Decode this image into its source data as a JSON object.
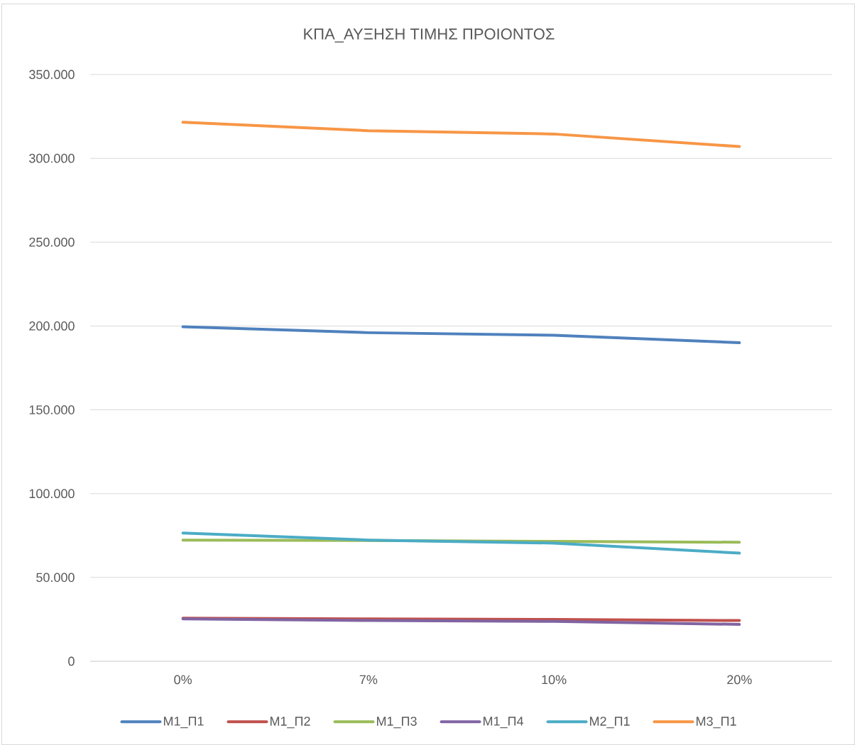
{
  "chart_data": {
    "type": "line",
    "title": "ΚΠΑ_ΑΥΞΗΣΗ ΤΙΜΗΣ ΠΡΟΙΟΝΤΟΣ",
    "categories": [
      "0%",
      "7%",
      "10%",
      "20%"
    ],
    "series": [
      {
        "name": "Μ1_Π1",
        "color": "#4f81bd",
        "values": [
          199500,
          196000,
          194500,
          190000
        ]
      },
      {
        "name": "Μ1_Π2",
        "color": "#c0504d",
        "values": [
          25700,
          25300,
          25000,
          24300
        ]
      },
      {
        "name": "Μ1_Π3",
        "color": "#9bbb59",
        "values": [
          72300,
          72000,
          71500,
          71000
        ]
      },
      {
        "name": "Μ1_Π4",
        "color": "#8064a2",
        "values": [
          25300,
          24300,
          23800,
          22000
        ]
      },
      {
        "name": "Μ2_Π1",
        "color": "#4bacc6",
        "values": [
          76500,
          72300,
          70500,
          64500
        ]
      },
      {
        "name": "Μ3_Π1",
        "color": "#f79646",
        "values": [
          321500,
          316500,
          314500,
          307000
        ]
      }
    ],
    "ylim": [
      0,
      350000
    ],
    "yticks": [
      0,
      {
        "value": 50000,
        "label": "50.000"
      },
      {
        "value": 100000,
        "label": "100.000"
      },
      {
        "value": 150000,
        "label": "150.000"
      },
      {
        "value": 200000,
        "label": "200.000"
      },
      {
        "value": 250000,
        "label": "250.000"
      },
      {
        "value": 300000,
        "label": "300.000"
      },
      {
        "value": 350000,
        "label": "350.000"
      }
    ],
    "grid": "y",
    "legend": "bottom"
  }
}
